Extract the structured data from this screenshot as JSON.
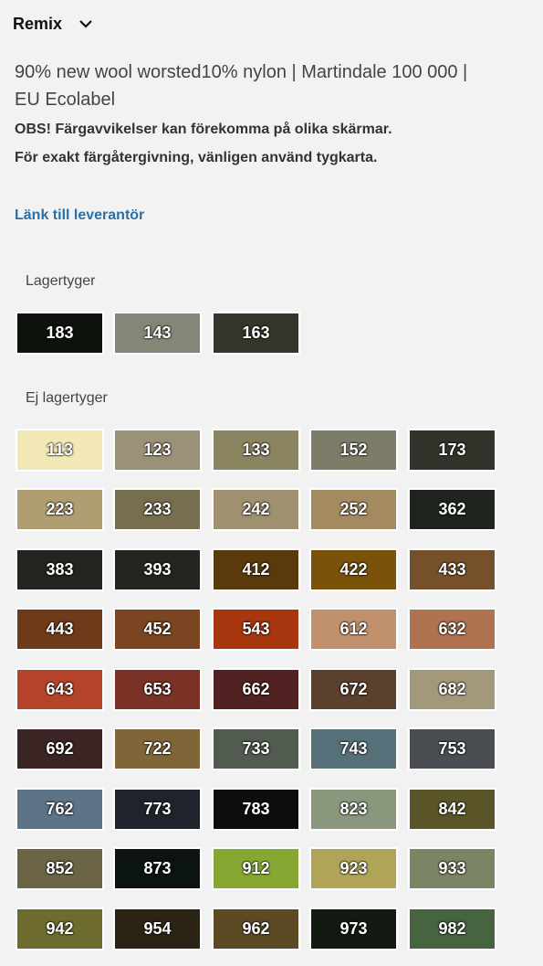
{
  "header": {
    "title": "Remix"
  },
  "description": [
    "90% new wool worsted10% nylon | Martindale 100 000 |",
    "EU Ecolabel"
  ],
  "notice": {
    "prefix": "OBS!",
    "lines": [
      " Färgavvikelser kan förekomma på olika skärmar.",
      "För exakt färgåtergivning, vänligen använd tygkarta."
    ]
  },
  "link": "Länk till leverantör",
  "groups": [
    {
      "title": "Lagertyger",
      "swatches": [
        {
          "code": "183",
          "color": "#0d120c"
        },
        {
          "code": "143",
          "color": "#858578"
        },
        {
          "code": "163",
          "color": "#35352b"
        }
      ]
    },
    {
      "title": "Ej lagertyger",
      "swatches": [
        {
          "code": "113",
          "color": "#f2e8b5"
        },
        {
          "code": "123",
          "color": "#9a9178"
        },
        {
          "code": "133",
          "color": "#8a8460"
        },
        {
          "code": "152",
          "color": "#7d7c69"
        },
        {
          "code": "173",
          "color": "#33332b"
        },
        {
          "code": "223",
          "color": "#b09e72"
        },
        {
          "code": "233",
          "color": "#776e50"
        },
        {
          "code": "242",
          "color": "#9f9070"
        },
        {
          "code": "252",
          "color": "#a38a60"
        },
        {
          "code": "362",
          "color": "#1f251e"
        },
        {
          "code": "383",
          "color": "#22241f"
        },
        {
          "code": "393",
          "color": "#25251f"
        },
        {
          "code": "412",
          "color": "#5a3a0c"
        },
        {
          "code": "422",
          "color": "#7a5209"
        },
        {
          "code": "433",
          "color": "#76502a"
        },
        {
          "code": "443",
          "color": "#6d3b1a"
        },
        {
          "code": "452",
          "color": "#7a4520"
        },
        {
          "code": "543",
          "color": "#a8360e"
        },
        {
          "code": "612",
          "color": "#c0916c"
        },
        {
          "code": "632",
          "color": "#b07350"
        },
        {
          "code": "643",
          "color": "#b5432c"
        },
        {
          "code": "653",
          "color": "#7a3226"
        },
        {
          "code": "662",
          "color": "#522222"
        },
        {
          "code": "672",
          "color": "#5c402e"
        },
        {
          "code": "682",
          "color": "#a4987a"
        },
        {
          "code": "692",
          "color": "#3a2424"
        },
        {
          "code": "722",
          "color": "#7f6538"
        },
        {
          "code": "733",
          "color": "#515b50"
        },
        {
          "code": "743",
          "color": "#56707a"
        },
        {
          "code": "753",
          "color": "#4a4e52"
        },
        {
          "code": "762",
          "color": "#5c7388"
        },
        {
          "code": "773",
          "color": "#1f242c"
        },
        {
          "code": "783",
          "color": "#0d0d0c"
        },
        {
          "code": "823",
          "color": "#8a977c"
        },
        {
          "code": "842",
          "color": "#5a5528"
        },
        {
          "code": "852",
          "color": "#6b6445"
        },
        {
          "code": "873",
          "color": "#0b1412"
        },
        {
          "code": "912",
          "color": "#86a832"
        },
        {
          "code": "923",
          "color": "#b0a458"
        },
        {
          "code": "933",
          "color": "#7b8464"
        },
        {
          "code": "942",
          "color": "#6d6c2e"
        },
        {
          "code": "954",
          "color": "#2b2414"
        },
        {
          "code": "962",
          "color": "#5c4a25"
        },
        {
          "code": "973",
          "color": "#121a12"
        },
        {
          "code": "982",
          "color": "#46643f"
        }
      ]
    }
  ]
}
